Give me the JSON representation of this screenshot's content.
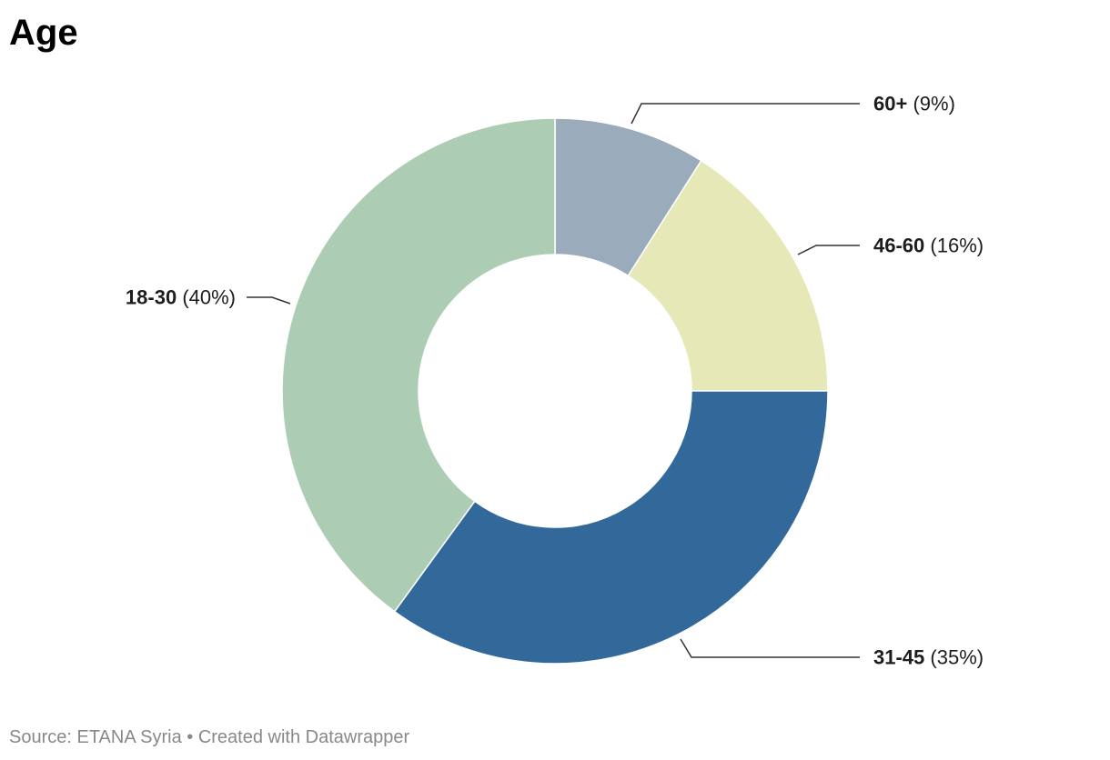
{
  "title": "Age",
  "footer": {
    "source": "Source: ETANA Syria",
    "separator": " • ",
    "credit": "Created with Datawrapper"
  },
  "chart_data": {
    "type": "pie",
    "donut": true,
    "title": "Age",
    "slices": [
      {
        "label": "60+",
        "value": 9,
        "percent_label": "(9%)",
        "color": "#9aabbb"
      },
      {
        "label": "46-60",
        "value": 16,
        "percent_label": "(16%)",
        "color": "#e6e8b7"
      },
      {
        "label": "31-45",
        "value": 35,
        "percent_label": "(35%)",
        "color": "#33689a"
      },
      {
        "label": "18-30",
        "value": 40,
        "percent_label": "(40%)",
        "color": "#accdb4"
      }
    ]
  }
}
